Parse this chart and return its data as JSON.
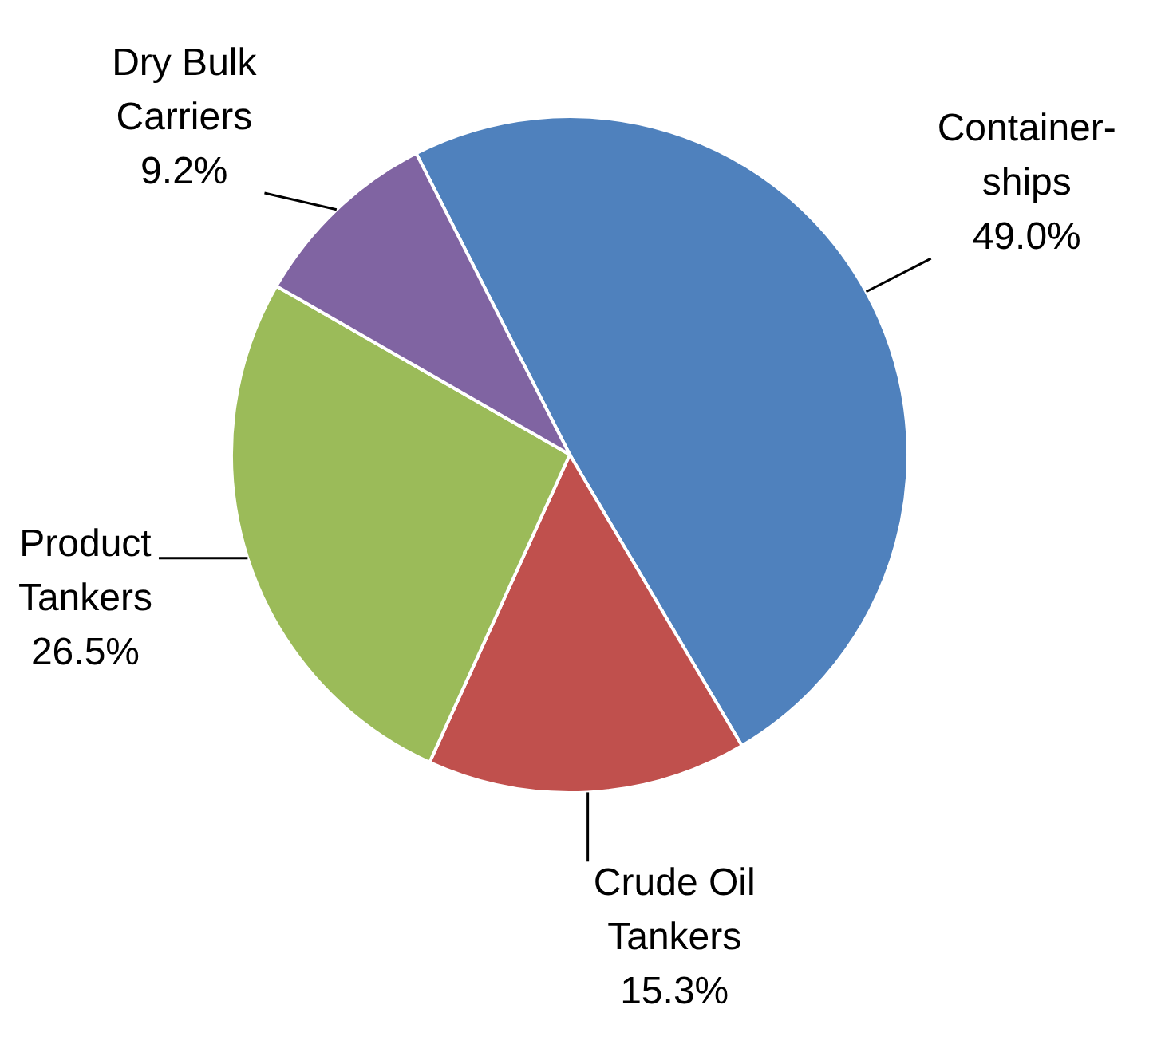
{
  "chart_data": {
    "type": "pie",
    "categories": [
      "Container-ships",
      "Crude Oil Tankers",
      "Product Tankers",
      "Dry Bulk Carriers"
    ],
    "values": [
      49.0,
      15.3,
      26.5,
      9.2
    ],
    "colors": [
      "#4f81bd",
      "#c0504d",
      "#9bbb59",
      "#8064a2"
    ],
    "value_labels": [
      "49.0%",
      "15.3%",
      "26.5%",
      "9.2%"
    ],
    "legend": false
  }
}
